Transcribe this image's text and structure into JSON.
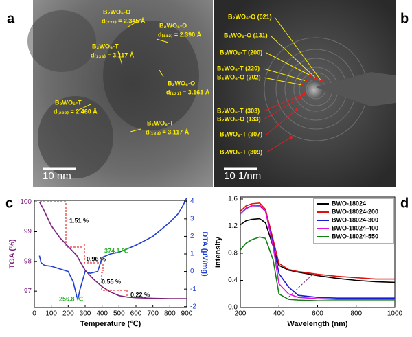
{
  "panel_labels": [
    "a",
    "b",
    "c",
    "d"
  ],
  "panel_a": {
    "annotations": [
      [
        "B₂WO₆-O",
        "d₍₂₂₁₎ = 2.345 Å"
      ],
      [
        "B₂WO₆-O",
        "d₍₁₁₂₎ = 2.390 Å"
      ],
      [
        "B₂WO₆-T",
        "d₍₁₃₃₎ = 3.117 Å"
      ],
      [
        "B₂WO₆-O",
        "d₍₁₃₁₎ = 3.163 Å"
      ],
      [
        "B₂WO₆-T",
        "d₍₂₀₂₎ = 2.460 Å"
      ],
      [
        "B₂WO₆-T",
        "d₍₁₃₃₎ = 3.117 Å"
      ]
    ],
    "scale_bar": "10 nm"
  },
  "panel_b": {
    "annotations": [
      "B₂WO₆-O (021)",
      "B₂WO₆-O (131)",
      "B₂WO₆-T (200)",
      "B₂WO₆-T (220)",
      "B₂WO₆-O (202)",
      "B₂WO₆-T (303)",
      "B₂WO₆-O (133)",
      "B₂WO₆-T (307)",
      "B₂WO₆-T (309)"
    ],
    "scale_bar": "10 1/nm"
  },
  "chart_data": [
    {
      "type": "line",
      "x_label": "Temperature (℃)",
      "y_label": "TGA (%)",
      "y2_label": "DTA (μV/mg)",
      "xlim": [
        0,
        900
      ],
      "xticks": [
        0,
        100,
        200,
        300,
        400,
        500,
        600,
        700,
        800,
        900
      ],
      "ylim": [
        96.45,
        100.05
      ],
      "yticks": [
        97,
        98,
        99,
        100
      ],
      "y2lim": [
        -2.05,
        4.05
      ],
      "y2ticks": [
        -2,
        -1,
        0,
        1,
        2,
        3,
        4
      ],
      "series": [
        {
          "name": "TGA",
          "color": "#7b1f7b",
          "x": [
            30,
            50,
            100,
            150,
            200,
            250,
            300,
            350,
            400,
            450,
            500,
            550,
            600,
            700,
            800,
            900
          ],
          "values": [
            100,
            99.8,
            99.2,
            98.8,
            98.5,
            98.2,
            97.7,
            97.4,
            97.15,
            96.97,
            96.85,
            96.8,
            96.78,
            96.76,
            96.75,
            96.75
          ]
        },
        {
          "name": "DTA",
          "color": "#1f3fd0",
          "axis": "y2",
          "x": [
            30,
            40,
            60,
            100,
            150,
            200,
            230,
            250,
            256.8,
            270,
            300,
            330,
            374.1,
            400,
            450,
            500,
            600,
            700,
            800,
            850,
            880,
            900
          ],
          "values": [
            0.9,
            0.5,
            0.35,
            0.3,
            0.15,
            0,
            -0.6,
            -1.4,
            -1.6,
            -1,
            0,
            -0.1,
            0,
            0.8,
            1.0,
            1.1,
            1.5,
            2.0,
            2.8,
            3.3,
            3.8,
            4.2
          ]
        }
      ],
      "annotations": [
        "1.51 %",
        "0.96 %",
        "0.55 %",
        "0.22 %",
        "374.1 ℃",
        "256.8 ℃"
      ]
    },
    {
      "type": "line",
      "x_label": "Wavelength (nm)",
      "y_label": "Intensity",
      "xlim": [
        200,
        1000
      ],
      "xticks": [
        200,
        400,
        600,
        800,
        1000
      ],
      "ylim": [
        0,
        1.63
      ],
      "yticks": [
        {
          "value": 0,
          "label": "0.0"
        },
        {
          "value": 0.4,
          "label": "0.4"
        },
        {
          "value": 0.8,
          "label": "0.8"
        },
        {
          "value": 1.2,
          "label": "1.2"
        },
        {
          "value": 1.6,
          "label": "1.6"
        }
      ],
      "legend": "upper right",
      "x": [
        200,
        230,
        260,
        300,
        330,
        370,
        400,
        450,
        500,
        600,
        700,
        800,
        900,
        1000
      ],
      "series": [
        {
          "name": "BWO-18024",
          "color": "#000000",
          "values": [
            1.22,
            1.28,
            1.3,
            1.31,
            1.25,
            0.9,
            0.62,
            0.55,
            0.52,
            0.47,
            0.43,
            0.4,
            0.38,
            0.37
          ]
        },
        {
          "name": "BWO-18024-200",
          "color": "#e01010",
          "values": [
            1.42,
            1.5,
            1.53,
            1.54,
            1.45,
            1.0,
            0.65,
            0.56,
            0.53,
            0.49,
            0.46,
            0.44,
            0.42,
            0.42
          ]
        },
        {
          "name": "BWO-18024-300",
          "color": "#1a1ad8",
          "values": [
            1.38,
            1.46,
            1.5,
            1.5,
            1.42,
            0.95,
            0.5,
            0.3,
            0.18,
            0.15,
            0.14,
            0.14,
            0.14,
            0.14
          ]
        },
        {
          "name": "BWO-18024-400",
          "color": "#e010e0",
          "values": [
            1.38,
            1.47,
            1.5,
            1.51,
            1.43,
            0.9,
            0.35,
            0.2,
            0.15,
            0.13,
            0.12,
            0.12,
            0.12,
            0.12
          ]
        },
        {
          "name": "BWO-18024-550",
          "color": "#108010",
          "values": [
            0.85,
            0.95,
            1.0,
            1.04,
            1.02,
            0.7,
            0.2,
            0.12,
            0.11,
            0.1,
            0.1,
            0.1,
            0.1,
            0.1
          ]
        }
      ]
    }
  ]
}
